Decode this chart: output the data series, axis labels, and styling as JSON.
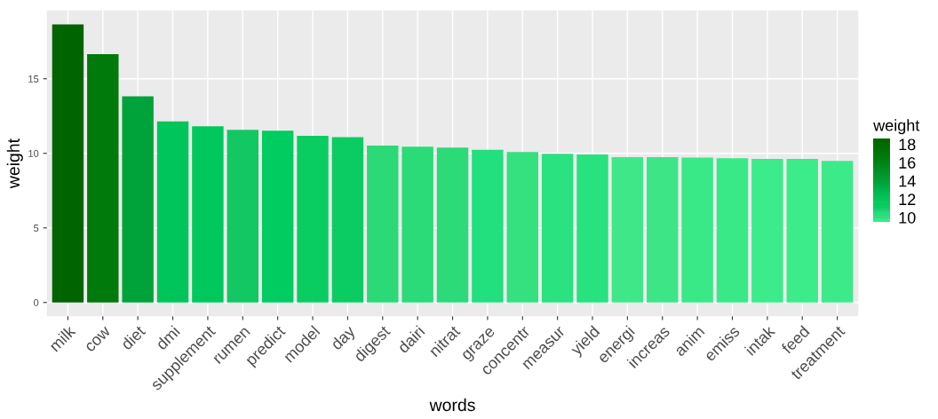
{
  "chart_data": {
    "type": "bar",
    "xlabel": "words",
    "ylabel": "weight",
    "clabel": "weight",
    "categories": [
      "milk",
      "cow",
      "diet",
      "dmi",
      "supplement",
      "rumen",
      "predict",
      "model",
      "day",
      "digest",
      "dairi",
      "nitrat",
      "graze",
      "concentr",
      "measur",
      "yield",
      "energi",
      "increas",
      "anim",
      "emiss",
      "intak",
      "feed",
      "treatment"
    ],
    "values": [
      18.65,
      16.65,
      13.83,
      12.14,
      11.82,
      11.58,
      11.52,
      11.17,
      11.09,
      10.52,
      10.44,
      10.38,
      10.24,
      10.09,
      9.97,
      9.92,
      9.75,
      9.75,
      9.71,
      9.67,
      9.63,
      9.63,
      9.5
    ],
    "colors": [
      "#006400",
      "#007a0b",
      "#00a33a",
      "#00c55a",
      "#00c85c",
      "#13c862",
      "#00cc60",
      "#0acd62",
      "#0acc62",
      "#2cd977",
      "#2adb78",
      "#2cda78",
      "#22e07d",
      "#35e07f",
      "#2ae27f",
      "#27e27e",
      "#40e789",
      "#3ee587",
      "#39e886",
      "#39e987",
      "#3ceb89",
      "#3ceb89",
      "#3dea8a"
    ],
    "ylim": [
      -0.93,
      19.58
    ],
    "yticks": [
      0,
      5,
      10,
      15
    ],
    "grid": true,
    "clim": [
      9.5,
      18.65
    ],
    "cticks": [
      10,
      12,
      14,
      16,
      18
    ]
  }
}
